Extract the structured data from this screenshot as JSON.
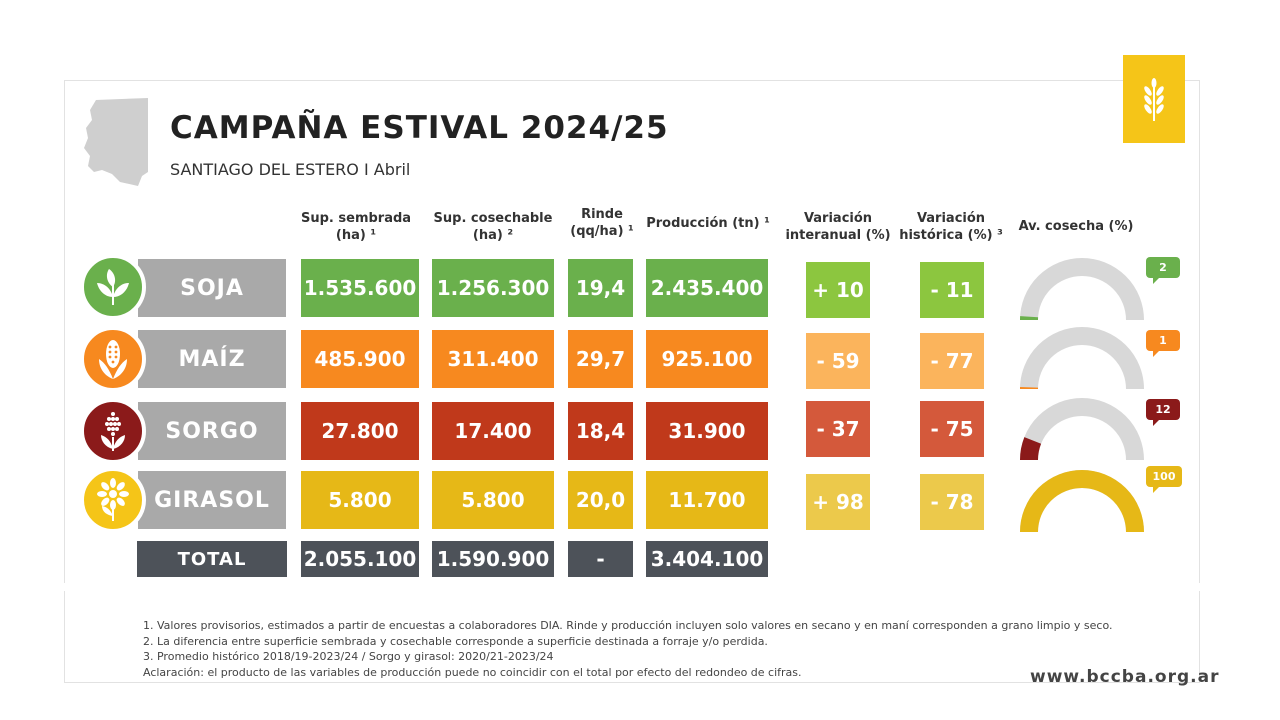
{
  "header": {
    "title": "CAMPAÑA ESTIVAL 2024/25",
    "subtitle": "SANTIAGO DEL ESTERO I Abril"
  },
  "columns": {
    "sup_sembrada": [
      "Sup. sembrada",
      "(ha) ¹"
    ],
    "sup_cosechable": [
      "Sup. cosechable",
      "(ha) ²"
    ],
    "rinde": [
      "Rinde",
      "(qq/ha) ¹"
    ],
    "produccion": [
      "Producción (tn) ¹"
    ],
    "var_interanual": [
      "Variación",
      "interanual (%)"
    ],
    "var_historica": [
      "Variación",
      "histórica (%) ³"
    ],
    "av_cosecha": [
      "Av. cosecha (%)"
    ]
  },
  "crops": [
    {
      "name": "SOJA",
      "icon": "soy-plant-icon",
      "sup_sembrada": "1.535.600",
      "sup_cosechable": "1.256.300",
      "rinde": "19,4",
      "produccion": "2.435.400",
      "var_interanual": "+ 10",
      "var_historica": "- 11",
      "av_cosecha": "2",
      "av_cosecha_pct": 2,
      "color": "#6ab04c",
      "var_interanual_color": "#8cc63f",
      "var_historica_color": "#8cc63f"
    },
    {
      "name": "MAÍZ",
      "icon": "corn-icon",
      "sup_sembrada": "485.900",
      "sup_cosechable": "311.400",
      "rinde": "29,7",
      "produccion": "925.100",
      "var_interanual": "- 59",
      "var_historica": "- 77",
      "av_cosecha": "1",
      "av_cosecha_pct": 1,
      "color": "#f7891f",
      "var_interanual_color": "#fbb45c",
      "var_historica_color": "#fbb45c"
    },
    {
      "name": "SORGO",
      "icon": "sorghum-icon",
      "sup_sembrada": "27.800",
      "sup_cosechable": "17.400",
      "rinde": "18,4",
      "produccion": "31.900",
      "var_interanual": "- 37",
      "var_historica": "- 75",
      "av_cosecha": "12",
      "av_cosecha_pct": 12,
      "color": "#c0391b",
      "var_interanual_color": "#d4593b",
      "var_historica_color": "#d4593b"
    },
    {
      "name": "GIRASOL",
      "icon": "sunflower-icon",
      "sup_sembrada": "5.800",
      "sup_cosechable": "5.800",
      "rinde": "20,0",
      "produccion": "11.700",
      "var_interanual": "+ 98",
      "var_historica": "- 78",
      "av_cosecha": "100",
      "av_cosecha_pct": 100,
      "color": "#e6b817",
      "var_interanual_color": "#ecc94b",
      "var_historica_color": "#ecc94b"
    }
  ],
  "total": {
    "label": "TOTAL",
    "sup_sembrada": "2.055.100",
    "sup_cosechable": "1.590.900",
    "rinde": "-",
    "produccion": "3.404.100"
  },
  "footnotes": [
    "1. Valores provisorios, estimados a partir de encuestas a colaboradores DIA. Rinde y producción incluyen solo valores en secano y en maní corresponden a grano limpio y seco.",
    "2. La diferencia entre superficie sembrada y cosechable corresponde a superficie destinada a forraje y/o perdida.",
    "3. Promedio histórico 2018/19-2023/24 / Sorgo y girasol: 2020/21-2023/24",
    "Aclaración: el producto de las variables de producción puede no coincidir con el total por efecto del redondeo de cifras."
  ],
  "website": "www.bccba.org.ar",
  "colors": {
    "total_bg": "#4d5259",
    "crop_label_bg": "#a9a9a9",
    "gauge_track": "#d8d8d8",
    "logo_bg": "#f5c518",
    "sorgo_gauge": "#8b1a1a"
  }
}
